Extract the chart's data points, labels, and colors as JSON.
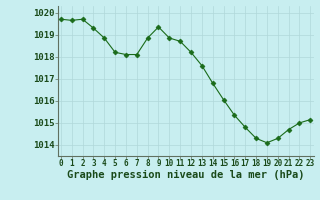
{
  "x": [
    0,
    1,
    2,
    3,
    4,
    5,
    6,
    7,
    8,
    9,
    10,
    11,
    12,
    13,
    14,
    15,
    16,
    17,
    18,
    19,
    20,
    21,
    22,
    23
  ],
  "y": [
    1019.7,
    1019.65,
    1019.7,
    1019.3,
    1018.85,
    1018.2,
    1018.1,
    1018.1,
    1018.85,
    1019.35,
    1018.85,
    1018.7,
    1018.2,
    1017.6,
    1016.8,
    1016.05,
    1015.35,
    1014.8,
    1014.3,
    1014.1,
    1014.3,
    1014.7,
    1015.0,
    1015.15
  ],
  "line_color": "#1a6b1a",
  "marker": "D",
  "marker_size": 2.5,
  "bg_color": "#c8eef0",
  "grid_color": "#b0d8da",
  "xlabel": "Graphe pression niveau de la mer (hPa)",
  "xlabel_color": "#1a4a1a",
  "xlabel_fontsize": 7.5,
  "tick_label_color": "#1a4a1a",
  "ytick_fontsize": 6.5,
  "xtick_fontsize": 5.5,
  "ylim": [
    1013.5,
    1020.3
  ],
  "yticks": [
    1014,
    1015,
    1016,
    1017,
    1018,
    1019,
    1020
  ],
  "xticks": [
    0,
    1,
    2,
    3,
    4,
    5,
    6,
    7,
    8,
    9,
    10,
    11,
    12,
    13,
    14,
    15,
    16,
    17,
    18,
    19,
    20,
    21,
    22,
    23
  ],
  "spine_color": "#607060"
}
